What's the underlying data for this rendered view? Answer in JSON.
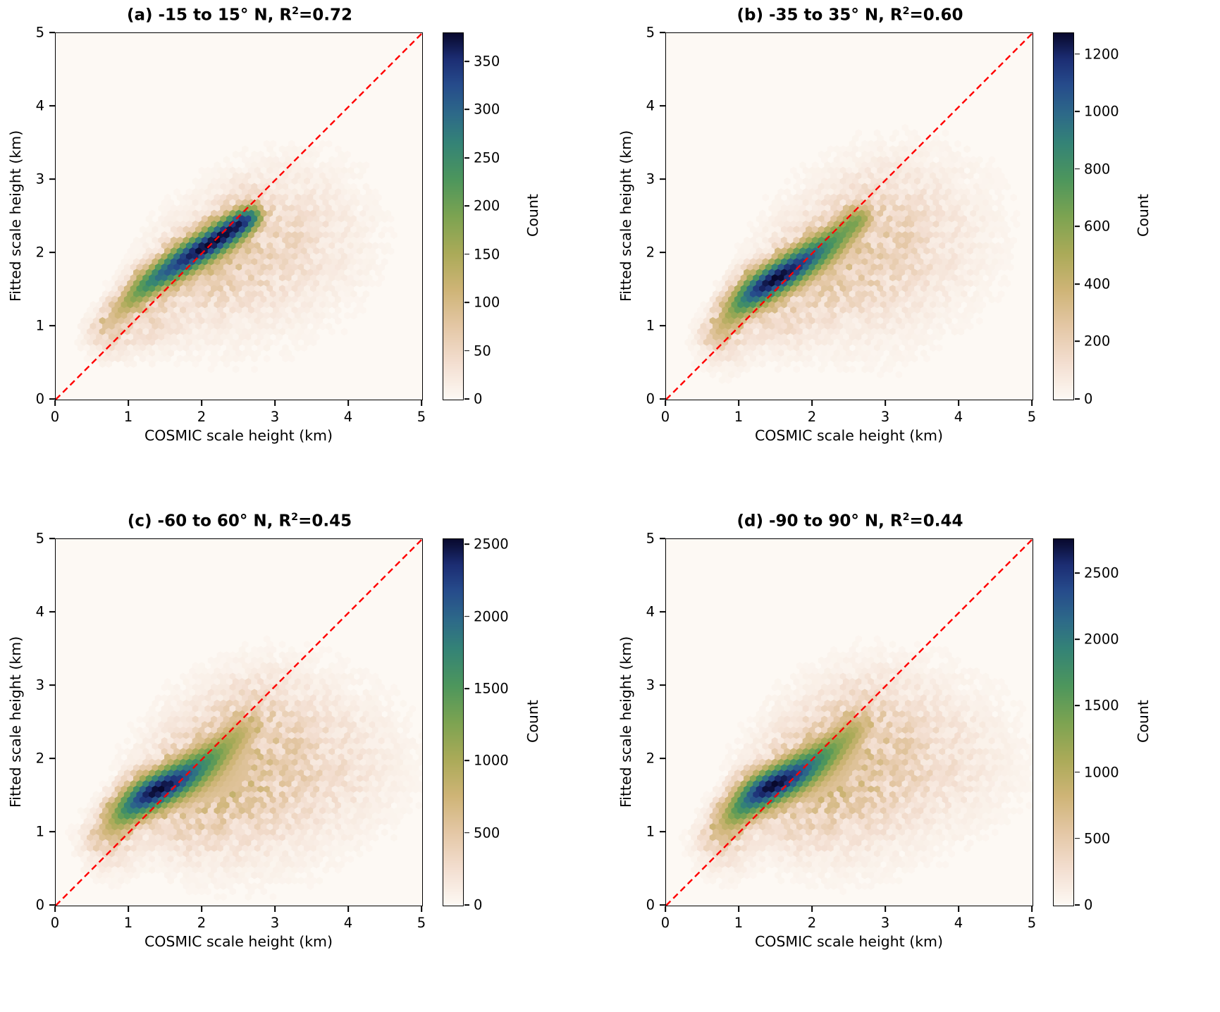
{
  "figure": {
    "background": "#ffffff",
    "xlabel": "COSMIC scale height (km)",
    "ylabel": "Fitted scale height (km)",
    "colorbar_label": "Count",
    "xlim": [
      0,
      5
    ],
    "ylim": [
      0,
      5
    ],
    "axis_ticks": [
      0,
      1,
      2,
      3,
      4,
      5
    ],
    "diagonal_color": "#ff0000",
    "diagonal_style": "dashed 1:1 reference line",
    "colormap": [
      [
        0.0,
        "#fdf9f4"
      ],
      [
        0.1,
        "#f3ded0"
      ],
      [
        0.2,
        "#e4c7a5"
      ],
      [
        0.3,
        "#ceb476"
      ],
      [
        0.4,
        "#aaaa58"
      ],
      [
        0.5,
        "#7ca351"
      ],
      [
        0.6,
        "#4d965c"
      ],
      [
        0.7,
        "#348376"
      ],
      [
        0.78,
        "#2d6989"
      ],
      [
        0.86,
        "#264b8b"
      ],
      [
        0.93,
        "#1c2d73"
      ],
      [
        1.0,
        "#08092d"
      ]
    ]
  },
  "chart_data": [
    {
      "type": "hexbin",
      "panel": "a",
      "title_main": "(a) -15 to 15° N, R",
      "r_exponent": "2",
      "title_suffix": "=0.72",
      "lat_range": "-15 to 15° N",
      "r_squared": 0.72,
      "colorbar": {
        "ticks": [
          0,
          50,
          100,
          150,
          200,
          250,
          300,
          350
        ],
        "vmax": 380
      },
      "density": {
        "ridge": [
          [
            0.7,
            1.0,
            0.1,
            0.1
          ],
          [
            0.85,
            1.18,
            0.18,
            0.1
          ],
          [
            1.0,
            1.33,
            0.32,
            0.1
          ],
          [
            1.15,
            1.48,
            0.5,
            0.11
          ],
          [
            1.3,
            1.6,
            0.62,
            0.11
          ],
          [
            1.45,
            1.7,
            0.7,
            0.11
          ],
          [
            1.6,
            1.8,
            0.78,
            0.12
          ],
          [
            1.75,
            1.9,
            0.85,
            0.12
          ],
          [
            1.9,
            2.0,
            0.9,
            0.12
          ],
          [
            2.05,
            2.08,
            0.93,
            0.12
          ],
          [
            2.2,
            2.18,
            0.97,
            0.12
          ],
          [
            2.35,
            2.28,
            1.0,
            0.12
          ],
          [
            2.5,
            2.38,
            0.95,
            0.11
          ],
          [
            2.62,
            2.46,
            0.7,
            0.1
          ],
          [
            2.72,
            2.52,
            0.35,
            0.09
          ]
        ],
        "tail": [
          [
            1.9,
            1.75,
            0.07,
            0.3
          ],
          [
            2.4,
            2.0,
            0.05,
            0.35
          ],
          [
            2.9,
            2.15,
            0.03,
            0.45
          ],
          [
            3.4,
            2.3,
            0.015,
            0.5
          ],
          [
            1.3,
            1.15,
            0.05,
            0.25
          ],
          [
            0.75,
            0.9,
            0.05,
            0.18
          ],
          [
            2.2,
            1.6,
            0.015,
            0.5
          ],
          [
            3.0,
            1.9,
            0.008,
            0.6
          ],
          [
            2.6,
            2.62,
            0.04,
            0.2
          ]
        ]
      }
    },
    {
      "type": "hexbin",
      "panel": "b",
      "title_main": "(b) -35 to 35° N, R",
      "r_exponent": "2",
      "title_suffix": "=0.60",
      "lat_range": "-35 to 35° N",
      "r_squared": 0.6,
      "colorbar": {
        "ticks": [
          0,
          200,
          400,
          600,
          800,
          1000,
          1200
        ],
        "vmax": 1275
      },
      "density": {
        "ridge": [
          [
            0.7,
            0.9,
            0.15,
            0.11
          ],
          [
            0.85,
            1.1,
            0.3,
            0.12
          ],
          [
            1.0,
            1.28,
            0.55,
            0.12
          ],
          [
            1.15,
            1.42,
            0.8,
            0.13
          ],
          [
            1.3,
            1.52,
            0.95,
            0.13
          ],
          [
            1.45,
            1.62,
            1.0,
            0.13
          ],
          [
            1.6,
            1.7,
            0.97,
            0.13
          ],
          [
            1.75,
            1.8,
            0.9,
            0.13
          ],
          [
            1.9,
            1.9,
            0.78,
            0.13
          ],
          [
            2.05,
            2.0,
            0.62,
            0.13
          ],
          [
            2.2,
            2.1,
            0.5,
            0.13
          ],
          [
            2.35,
            2.22,
            0.42,
            0.12
          ],
          [
            2.5,
            2.35,
            0.38,
            0.11
          ],
          [
            2.62,
            2.45,
            0.3,
            0.1
          ],
          [
            2.72,
            2.52,
            0.15,
            0.09
          ]
        ],
        "tail": [
          [
            2.0,
            1.7,
            0.07,
            0.35
          ],
          [
            2.5,
            1.95,
            0.05,
            0.45
          ],
          [
            3.0,
            2.2,
            0.035,
            0.5
          ],
          [
            3.5,
            2.35,
            0.015,
            0.55
          ],
          [
            1.5,
            1.25,
            0.06,
            0.3
          ],
          [
            0.8,
            0.8,
            0.04,
            0.2
          ],
          [
            2.6,
            1.7,
            0.012,
            0.6
          ],
          [
            3.2,
            1.9,
            0.007,
            0.6
          ],
          [
            2.8,
            2.6,
            0.02,
            0.3
          ]
        ]
      }
    },
    {
      "type": "hexbin",
      "panel": "c",
      "title_main": "(c) -60 to 60° N, R",
      "r_exponent": "2",
      "title_suffix": "=0.45",
      "lat_range": "-60 to 60° N",
      "r_squared": 0.45,
      "colorbar": {
        "ticks": [
          0,
          500,
          1000,
          1500,
          2000,
          2500
        ],
        "vmax": 2540
      },
      "density": {
        "ridge": [
          [
            0.65,
            0.95,
            0.12,
            0.12
          ],
          [
            0.8,
            1.12,
            0.3,
            0.13
          ],
          [
            0.95,
            1.28,
            0.6,
            0.13
          ],
          [
            1.1,
            1.4,
            0.85,
            0.14
          ],
          [
            1.25,
            1.5,
            1.0,
            0.14
          ],
          [
            1.4,
            1.58,
            1.0,
            0.14
          ],
          [
            1.55,
            1.65,
            0.92,
            0.14
          ],
          [
            1.7,
            1.73,
            0.8,
            0.14
          ],
          [
            1.85,
            1.82,
            0.65,
            0.14
          ],
          [
            2.0,
            1.92,
            0.5,
            0.14
          ],
          [
            2.15,
            2.03,
            0.38,
            0.13
          ],
          [
            2.3,
            2.16,
            0.28,
            0.13
          ],
          [
            2.45,
            2.3,
            0.2,
            0.12
          ],
          [
            2.58,
            2.42,
            0.13,
            0.11
          ]
        ],
        "tail": [
          [
            2.1,
            1.75,
            0.1,
            0.4
          ],
          [
            2.5,
            1.9,
            0.07,
            0.5
          ],
          [
            3.0,
            2.0,
            0.045,
            0.55
          ],
          [
            3.5,
            2.0,
            0.022,
            0.55
          ],
          [
            4.0,
            1.9,
            0.01,
            0.5
          ],
          [
            1.7,
            1.35,
            0.07,
            0.35
          ],
          [
            0.75,
            0.85,
            0.05,
            0.22
          ],
          [
            2.6,
            2.55,
            0.035,
            0.3
          ],
          [
            2.85,
            2.75,
            0.02,
            0.28
          ],
          [
            2.3,
            1.45,
            0.03,
            0.5
          ],
          [
            3.0,
            1.55,
            0.012,
            0.55
          ]
        ]
      }
    },
    {
      "type": "hexbin",
      "panel": "d",
      "title_main": "(d) -90 to 90° N, R",
      "r_exponent": "2",
      "title_suffix": "=0.44",
      "lat_range": "-90 to 90° N",
      "r_squared": 0.44,
      "colorbar": {
        "ticks": [
          0,
          500,
          1000,
          1500,
          2000,
          2500
        ],
        "vmax": 2760
      },
      "density": {
        "ridge": [
          [
            0.7,
            0.95,
            0.12,
            0.12
          ],
          [
            0.85,
            1.15,
            0.3,
            0.13
          ],
          [
            1.0,
            1.3,
            0.6,
            0.13
          ],
          [
            1.15,
            1.45,
            0.85,
            0.14
          ],
          [
            1.3,
            1.55,
            1.0,
            0.14
          ],
          [
            1.45,
            1.63,
            1.0,
            0.14
          ],
          [
            1.6,
            1.7,
            0.93,
            0.14
          ],
          [
            1.75,
            1.78,
            0.82,
            0.14
          ],
          [
            1.9,
            1.87,
            0.68,
            0.14
          ],
          [
            2.05,
            1.97,
            0.52,
            0.14
          ],
          [
            2.2,
            2.08,
            0.4,
            0.13
          ],
          [
            2.35,
            2.2,
            0.3,
            0.13
          ],
          [
            2.5,
            2.33,
            0.22,
            0.12
          ],
          [
            2.62,
            2.45,
            0.14,
            0.11
          ]
        ],
        "tail": [
          [
            2.1,
            1.8,
            0.1,
            0.4
          ],
          [
            2.55,
            1.95,
            0.07,
            0.5
          ],
          [
            3.0,
            2.05,
            0.045,
            0.55
          ],
          [
            3.5,
            2.05,
            0.02,
            0.55
          ],
          [
            4.0,
            1.95,
            0.009,
            0.5
          ],
          [
            1.7,
            1.4,
            0.07,
            0.35
          ],
          [
            0.8,
            0.85,
            0.05,
            0.22
          ],
          [
            2.6,
            2.55,
            0.03,
            0.3
          ],
          [
            2.85,
            2.72,
            0.015,
            0.28
          ],
          [
            2.4,
            1.5,
            0.03,
            0.5
          ]
        ]
      }
    }
  ]
}
